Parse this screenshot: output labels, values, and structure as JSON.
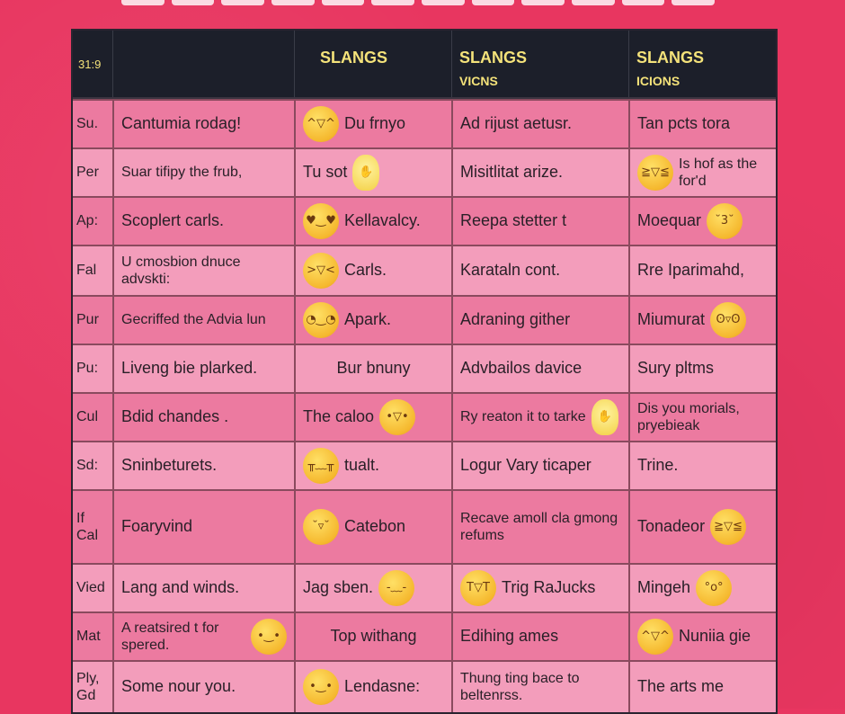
{
  "header": {
    "corner": "31:9",
    "columns": [
      {
        "title": "",
        "subtitle": ""
      },
      {
        "title": "SLANGS",
        "subtitle": ""
      },
      {
        "title": "SLANGS",
        "subtitle": "VICNS"
      },
      {
        "title": "SLANGS",
        "subtitle": "ICIONS"
      }
    ]
  },
  "rows": [
    {
      "label": "Su.",
      "c1": "Cantumia rodag!",
      "c2": {
        "text": "Du frnyo",
        "emoji": "grinning-squint",
        "pos": "before"
      },
      "c3": {
        "text": "Ad rijust aetusr."
      },
      "c4": {
        "text": "Tan pcts tora"
      }
    },
    {
      "label": "Per",
      "c1": "Suar tifipy the frub,",
      "c2": {
        "text": "Tu sot",
        "emoji": "raised-hand",
        "pos": "after"
      },
      "c3": {
        "text": "Misitlitat arize."
      },
      "c4": {
        "text": "Is hof as the for'd",
        "emoji": "laughing-tears",
        "pos": "before"
      }
    },
    {
      "label": "Ap:",
      "c1": "Scoplert carls.",
      "c2": {
        "text": "Kellavalcy.",
        "emoji": "heart-eyes",
        "pos": "before"
      },
      "c3": {
        "text": "Reepa stetter t"
      },
      "c4": {
        "text": "Moequar",
        "emoji": "winking-kiss",
        "pos": "after"
      }
    },
    {
      "label": "Fal",
      "c1": "U cmosbion dnuce advskti:",
      "c2": {
        "text": "Carls.",
        "emoji": "squinting-tongue",
        "pos": "before"
      },
      "c3": {
        "text": "Karataln cont."
      },
      "c4": {
        "text": "Rre Iparimahd,"
      }
    },
    {
      "label": "Pur",
      "c1": "Gecriffed the Advia lun",
      "c2": {
        "text": "Apark.",
        "emoji": "smirking",
        "pos": "before"
      },
      "c3": {
        "text": "Adraning gither"
      },
      "c4": {
        "text": "Miumurat",
        "emoji": "grimacing",
        "pos": "after"
      }
    },
    {
      "label": "Pu:",
      "c1": "Liveng bie plarked.",
      "c2": {
        "text": "Bur bnuny"
      },
      "c3": {
        "text": "Advbailos davice"
      },
      "c4": {
        "text": "Sury pltms"
      }
    },
    {
      "label": "Cul",
      "c1": "Bdid chandes .",
      "c2": {
        "text": "The caloo",
        "emoji": "grinning",
        "pos": "after"
      },
      "c3": {
        "text": "Ry reaton it to tarke",
        "emoji": "raised-hand",
        "pos": "after"
      },
      "c4": {
        "text": "Dis you morials, pryebieak"
      }
    },
    {
      "label": "Sd:",
      "c1": "Sninbeturets.",
      "c2": {
        "text": "tualt.",
        "emoji": "crying",
        "pos": "before"
      },
      "c3": {
        "text": "Logur Vary ticaper"
      },
      "c4": {
        "text": "Trine."
      }
    },
    {
      "label": "If Cal",
      "c1": "Foaryvind",
      "c2": {
        "text": "Catebon",
        "emoji": "grimacing-sweat",
        "pos": "before"
      },
      "c3": {
        "text": "Recave amoll cla gmong refums"
      },
      "c4": {
        "text": "Tonadeor",
        "emoji": "laughing-tears",
        "pos": "after"
      }
    },
    {
      "label": "Vied",
      "c1": "Lang and winds.",
      "c2": {
        "text": "Jag sben.",
        "emoji": "pensive",
        "pos": "after"
      },
      "c3": {
        "text": "Trig RaJucks",
        "emoji": "crying-loud",
        "pos": "middle"
      },
      "c4": {
        "text": "Mingeh",
        "emoji": "astonished",
        "pos": "after"
      }
    },
    {
      "label": "Mat",
      "c1": "A reatsired t for spered.",
      "c1emoji": "smiling",
      "c2": {
        "text": "Top withang"
      },
      "c3": {
        "text": "Edihing ames"
      },
      "c4": {
        "text": "Nuniia gie",
        "emoji": "grinning-squint",
        "pos": "before"
      }
    },
    {
      "label": "Ply, Gd",
      "c1": "Some nour you.",
      "c2": {
        "text": "Lendasne:",
        "emoji": "slightly-smiling",
        "pos": "before"
      },
      "c3": {
        "text": "Thung ting bace to beltenrss."
      },
      "c4": {
        "text": "The arts me"
      }
    }
  ],
  "colors": {
    "background": "#e83660",
    "header": "#1c1f2a",
    "header_text": "#f4e27a",
    "row_dark": "#ec7aa0",
    "row_light": "#f39dbb"
  }
}
